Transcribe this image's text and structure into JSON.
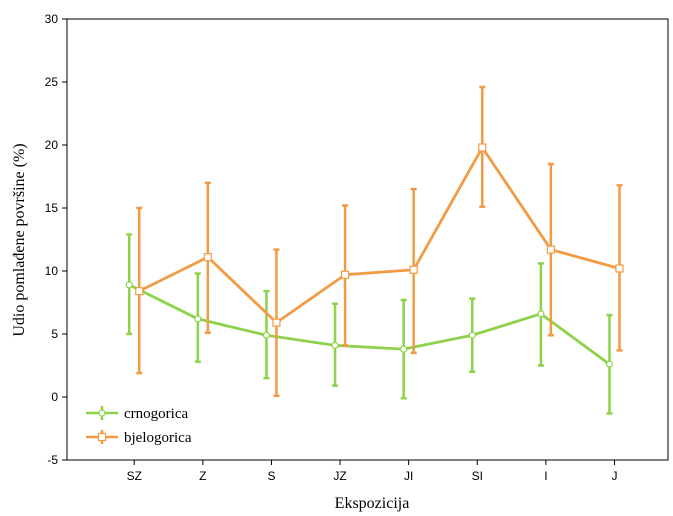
{
  "chart_data": {
    "type": "line",
    "xlabel": "Ekspozicija",
    "ylabel": "Udio pomlađene površine (%)",
    "ylim": [
      -5,
      30
    ],
    "yticks": [
      -5,
      0,
      5,
      10,
      15,
      20,
      25,
      30
    ],
    "categories": [
      "SZ",
      "Z",
      "S",
      "JZ",
      "JI",
      "SI",
      "I",
      "J"
    ],
    "grid": false,
    "legend_position": "bottom-left",
    "series": [
      {
        "name": "crnogorica",
        "color": "#8dd24a",
        "marker": "circle",
        "values": [
          8.9,
          6.2,
          4.9,
          4.1,
          3.8,
          4.9,
          6.6,
          2.6
        ],
        "lower": [
          5.0,
          2.8,
          1.5,
          0.9,
          -0.1,
          2.0,
          2.5,
          -1.3
        ],
        "upper": [
          12.9,
          9.8,
          8.4,
          7.4,
          7.7,
          7.8,
          10.6,
          6.5
        ]
      },
      {
        "name": "bjelogorica",
        "color": "#f39a45",
        "marker": "square",
        "values": [
          8.4,
          11.1,
          5.9,
          9.7,
          10.1,
          19.8,
          11.7,
          10.2
        ],
        "lower": [
          1.9,
          5.1,
          0.1,
          4.1,
          3.5,
          15.1,
          4.9,
          3.7
        ],
        "upper": [
          15.0,
          17.0,
          11.7,
          15.2,
          16.5,
          24.6,
          18.5,
          16.8
        ]
      }
    ]
  }
}
